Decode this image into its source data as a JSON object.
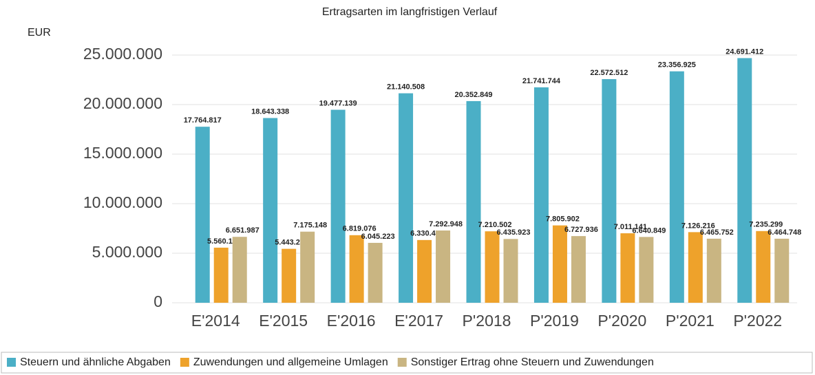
{
  "chart_data": {
    "type": "bar",
    "title": "Ertragsarten im langfristigen Verlauf",
    "y_label": "EUR",
    "categories": [
      "E'2014",
      "E'2015",
      "E'2016",
      "E'2017",
      "P'2018",
      "P'2019",
      "P'2020",
      "P'2021",
      "P'2022"
    ],
    "series": [
      {
        "name": "Steuern und ähnliche Abgaben",
        "color": "#4bafc6",
        "values": [
          17764817,
          18643338,
          19477139,
          21140508,
          20352849,
          21741744,
          22572512,
          23356925,
          24691412
        ],
        "value_labels": [
          "17.764.817",
          "18.643.338",
          "19.477.139",
          "21.140.508",
          "20.352.849",
          "21.741.744",
          "22.572.512",
          "23.356.925",
          "24.691.412"
        ]
      },
      {
        "name": "Zuwendungen und allgemeine Umlagen",
        "color": "#eea22b",
        "values": [
          5560112,
          5443270,
          6819076,
          6330467,
          7210502,
          7805902,
          7011141,
          7126216,
          7235299
        ],
        "value_labels": [
          "5.560.112",
          "5.443.270",
          "6.819.076",
          "6.330.467",
          "7.210.502",
          "7.805.902",
          "7.011.141",
          "7.126.216",
          "7.235.299"
        ]
      },
      {
        "name": "Sonstiger Ertrag ohne Steuern und Zuwendungen",
        "color": "#c9b582",
        "values": [
          6651987,
          7175148,
          6045223,
          7292948,
          6435923,
          6727936,
          6640849,
          6465752,
          6464748
        ],
        "value_labels": [
          "6.651.987",
          "7.175.148",
          "6.045.223",
          "7.292.948",
          "6.435.923",
          "6.727.936",
          "6.640.849",
          "6.465.752",
          "6.464.748"
        ]
      }
    ],
    "ylim": [
      0,
      25000000
    ],
    "yticks": [
      0,
      {
        "value": 5000000,
        "label": "5.000.000"
      },
      {
        "value": 10000000,
        "label": "10.000.000"
      },
      {
        "value": 15000000,
        "label": "15.000.000"
      },
      {
        "value": 20000000,
        "label": "20.000.000"
      },
      {
        "value": 25000000,
        "label": "25.000.000"
      }
    ],
    "grid": true,
    "legend": "bottom"
  }
}
